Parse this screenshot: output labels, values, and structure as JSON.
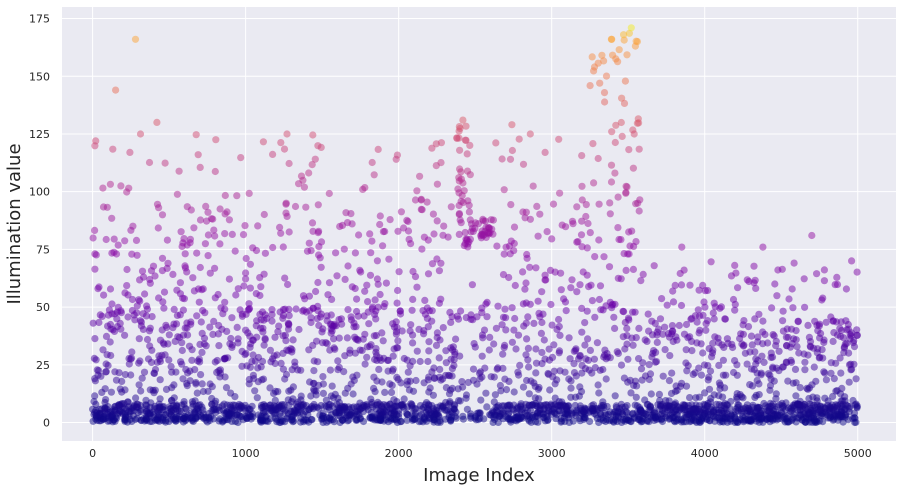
{
  "chart_data": {
    "type": "scatter",
    "title": "",
    "xlabel": "Image Index",
    "ylabel": "Illumination value",
    "xlim": [
      -200,
      5250
    ],
    "ylim": [
      -8,
      180
    ],
    "xticks": [
      0,
      1000,
      2000,
      3000,
      4000,
      5000
    ],
    "yticks": [
      0,
      25,
      50,
      75,
      100,
      125,
      150,
      175
    ],
    "xtick_labels": [
      "0",
      "1000",
      "2000",
      "3000",
      "4000",
      "5000"
    ],
    "ytick_labels": [
      "0",
      "25",
      "50",
      "75",
      "100",
      "125",
      "150",
      "175"
    ],
    "grid": true,
    "colormap": "plasma",
    "color_by": "y",
    "colors": {
      "background": "#eaeaf2",
      "grid": "#ffffff",
      "low": "#2a0593",
      "mid": "#b12a90",
      "high": "#f0f921"
    },
    "point_alpha": 0.5,
    "highlighted_points": [
      {
        "x": 280,
        "y": 166
      },
      {
        "x": 3520,
        "y": 171
      },
      {
        "x": 3470,
        "y": 168
      },
      {
        "x": 3390,
        "y": 166
      },
      {
        "x": 3560,
        "y": 165
      },
      {
        "x": 3280,
        "y": 154
      },
      {
        "x": 150,
        "y": 144
      },
      {
        "x": 420,
        "y": 130
      },
      {
        "x": 2420,
        "y": 131
      },
      {
        "x": 2740,
        "y": 129
      },
      {
        "x": 1270,
        "y": 125
      },
      {
        "x": 2860,
        "y": 125
      },
      {
        "x": 20,
        "y": 122
      },
      {
        "x": 690,
        "y": 116
      },
      {
        "x": 4700,
        "y": 81
      },
      {
        "x": 4380,
        "y": 76
      },
      {
        "x": 4960,
        "y": 70
      },
      {
        "x": 3850,
        "y": 76
      }
    ],
    "x": [],
    "y": []
  }
}
